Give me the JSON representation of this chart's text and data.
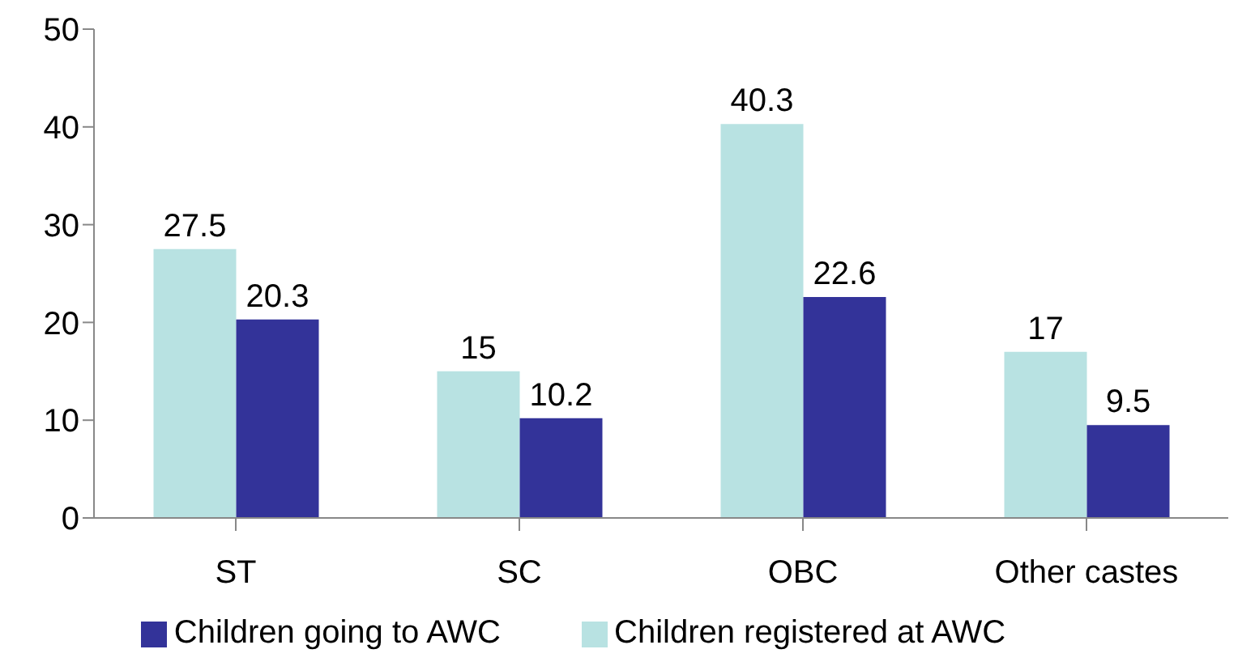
{
  "chart_data": {
    "type": "bar",
    "categories": [
      "ST",
      "SC",
      "OBC",
      "Other castes"
    ],
    "series": [
      {
        "name": "Children registered at AWC",
        "color": "#b8e2e2",
        "values": [
          27.5,
          15,
          40.3,
          17
        ]
      },
      {
        "name": "Children going to AWC",
        "color": "#333399",
        "values": [
          20.3,
          10.2,
          22.6,
          9.5
        ]
      }
    ],
    "ylim": [
      0,
      50
    ],
    "yticks": [
      0,
      10,
      20,
      30,
      40,
      50
    ],
    "grid": false,
    "legend": "bottom",
    "data_labels": true
  }
}
